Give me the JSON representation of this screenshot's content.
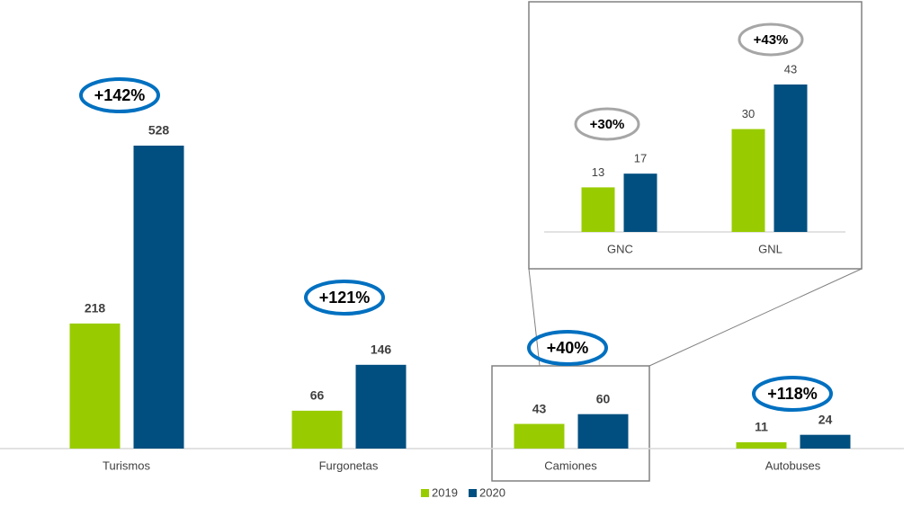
{
  "chart_data": [
    {
      "type": "bar",
      "categories": [
        "Turismos",
        "Furgonetas",
        "Camiones",
        "Autobuses"
      ],
      "series": [
        {
          "name": "2019",
          "color": "#99cc00",
          "values": [
            218,
            66,
            43,
            11
          ]
        },
        {
          "name": "2020",
          "color": "#004f80",
          "values": [
            528,
            146,
            60,
            24
          ]
        }
      ],
      "annotations": [
        "+142%",
        "+121%",
        "+40%",
        "+118%"
      ],
      "annotation_color": "#0070c0",
      "legend": "bottom"
    },
    {
      "type": "bar",
      "categories": [
        "GNC",
        "GNL"
      ],
      "series": [
        {
          "name": "2019",
          "color": "#99cc00",
          "values": [
            13,
            30
          ]
        },
        {
          "name": "2020",
          "color": "#004f80",
          "values": [
            17,
            43
          ]
        }
      ],
      "annotations": [
        "+30%",
        "+43%"
      ],
      "annotation_color": "#a6a6a6"
    }
  ]
}
